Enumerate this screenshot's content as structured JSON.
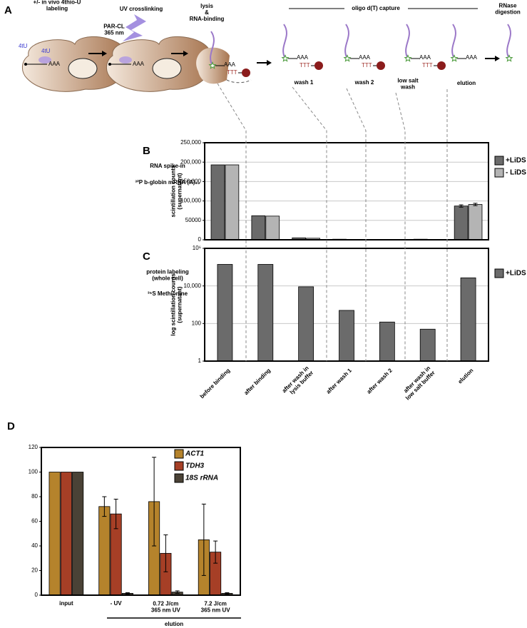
{
  "panel_a": {
    "label": "A",
    "steps": [
      "+/- in vivo 4thio-U\nlabeling",
      "UV crosslinking",
      "lysis\n&\nRNA-binding",
      "oligo d(T) capture",
      "RNase\ndigestion"
    ],
    "crosslink_label": "PAR-CL\n365 nm",
    "nucleoside": "4tU",
    "poly_a": "AAA",
    "oligo_dt": "TTT",
    "wash_steps": [
      "wash 1",
      "wash 2",
      "low salt\nwash",
      "elution"
    ]
  },
  "chart_data": [
    {
      "type": "bar",
      "panel": "B",
      "side_text": [
        "RNA spike-in",
        "³²P b-globin mRNA (A)₆₂"
      ],
      "ylabel": "scintillation counts\n(supernatant)",
      "categories": [
        null,
        null,
        null,
        null,
        null,
        null,
        null
      ],
      "series": [
        {
          "name": "+LiDS",
          "color": "#6b6b6b",
          "values": [
            193000,
            62000,
            5000,
            1500,
            800,
            1500,
            87000
          ],
          "errors": [
            null,
            null,
            null,
            null,
            null,
            null,
            3000
          ]
        },
        {
          "name": "- LiDS",
          "color": "#b4b4b4",
          "values": [
            193000,
            61000,
            4000,
            1000,
            500,
            1000,
            91000
          ],
          "errors": [
            null,
            null,
            null,
            null,
            null,
            null,
            3000
          ]
        }
      ],
      "ylim": [
        0,
        250000
      ],
      "yticks": [
        0,
        50000,
        {
          "value": 100000,
          "label": "100,000"
        },
        {
          "value": 150000,
          "label": "150,000"
        },
        {
          "value": 200000,
          "label": "200,000"
        },
        {
          "value": 250000,
          "label": "250,000"
        }
      ],
      "grid": true,
      "legend": "outside right"
    },
    {
      "type": "bar",
      "panel": "C",
      "side_text": [
        "protein labeling\n(whole cell)",
        "³⁵S Methionine"
      ],
      "ylabel": "log scintillation counts\n(supernatant)",
      "categories": [
        "before binding",
        "after binding",
        "after wash in\nlysis buffer",
        "after wash 1",
        "after wash 2",
        "after wash in\nlow salt buffer",
        "elution"
      ],
      "series": [
        {
          "name": "+LiDS",
          "color": "#6b6b6b",
          "values": [
            140000,
            140000,
            9000,
            500,
            120,
            50,
            27000
          ]
        }
      ],
      "ylim": [
        1,
        1000000
      ],
      "log_scale": true,
      "yticks": [
        1,
        100,
        {
          "value": 10000,
          "label": "10,000"
        },
        {
          "value": 1000000,
          "label": "10⁶"
        }
      ],
      "grid": true,
      "legend": "outside right"
    },
    {
      "type": "bar",
      "panel": "D",
      "xlabel": "elution",
      "categories": [
        "input",
        "- UV",
        "0.72 J/cm\n365 nm UV",
        "7.2 J/cm\n365 nm UV"
      ],
      "series": [
        {
          "name": "ACT1",
          "color": "#b5832c",
          "values": [
            100,
            72,
            76,
            45
          ],
          "errors": [
            null,
            8,
            36,
            29
          ]
        },
        {
          "name": "TDH3",
          "color": "#a63f26",
          "values": [
            100,
            66,
            34,
            35
          ],
          "errors": [
            null,
            12,
            15,
            9
          ]
        },
        {
          "name": "18S rRNA",
          "color": "#4a4236",
          "values": [
            100,
            1.5,
            2.5,
            1.5
          ],
          "errors": [
            null,
            0.5,
            1,
            0.5
          ]
        }
      ],
      "ylim": [
        0,
        120
      ],
      "yticks": [
        0,
        20,
        40,
        60,
        80,
        100,
        120
      ],
      "grid": false,
      "legend": "upper right"
    }
  ]
}
